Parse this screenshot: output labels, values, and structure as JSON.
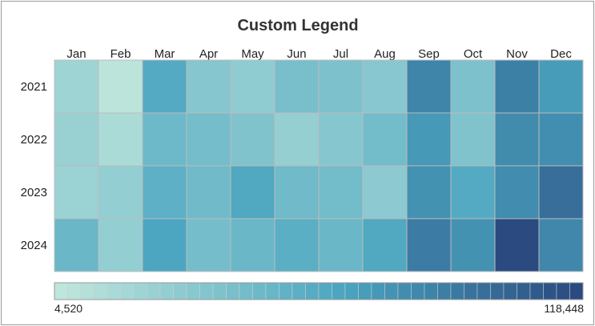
{
  "chart_data": {
    "type": "heatmap",
    "title": "Custom Legend",
    "x_categories": [
      "Jan",
      "Feb",
      "Mar",
      "Apr",
      "May",
      "Jun",
      "Jul",
      "Aug",
      "Sep",
      "Oct",
      "Nov",
      "Dec"
    ],
    "y_categories": [
      "2021",
      "2022",
      "2023",
      "2024"
    ],
    "values": [
      [
        22000,
        6000,
        62000,
        35000,
        30000,
        42000,
        40000,
        34000,
        85000,
        40000,
        88000,
        72000
      ],
      [
        25000,
        15000,
        48000,
        44000,
        38000,
        27000,
        35000,
        45000,
        74000,
        38000,
        82000,
        80000
      ],
      [
        24000,
        28000,
        57000,
        47000,
        64000,
        47000,
        45000,
        32000,
        78000,
        62000,
        81000,
        98000
      ],
      [
        50000,
        28000,
        66000,
        44000,
        50000,
        58000,
        50000,
        64000,
        90000,
        78000,
        118448,
        84000
      ]
    ],
    "color_scale": {
      "min": 4520,
      "max": 118448,
      "min_label": "4,520",
      "max_label": "118,448",
      "min_color": "#bfe6dc",
      "mid_color": "#4aa5c0",
      "max_color": "#2a4a80"
    },
    "legend": {
      "position": "bottom",
      "type": "segmented",
      "segments": 40
    },
    "grid_color": "#bcbcbc"
  }
}
